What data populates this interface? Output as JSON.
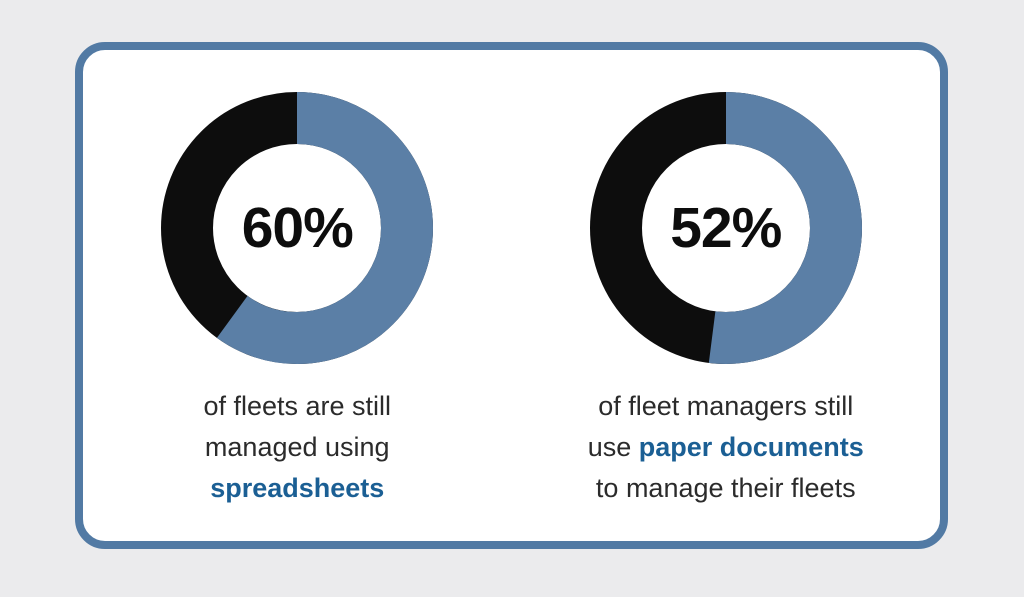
{
  "page": {
    "background_color": "#ebebed"
  },
  "card": {
    "background_color": "#ffffff",
    "border_color": "#527aa4"
  },
  "chart_data": [
    {
      "type": "donut",
      "title": "60% of fleets are still managed using spreadsheets",
      "value": 60,
      "remainder": 40,
      "center_label": "60%",
      "start_angle_deg": 0,
      "direction": "clockwise",
      "segments": [
        {
          "name": "fleets managed using spreadsheets",
          "value": 60,
          "color": "#5b7fa6"
        },
        {
          "name": "other",
          "value": 40,
          "color": "#0d0d0d"
        }
      ],
      "caption": [
        {
          "pre": "of fleets are still",
          "em": "",
          "post": ""
        },
        {
          "pre": "managed using",
          "em": "",
          "post": ""
        },
        {
          "pre": "",
          "em": "spreadsheets",
          "post": ""
        }
      ]
    },
    {
      "type": "donut",
      "title": "52% of fleet managers still use paper documents to manage their fleets",
      "value": 52,
      "remainder": 48,
      "center_label": "52%",
      "start_angle_deg": 0,
      "direction": "clockwise",
      "segments": [
        {
          "name": "fleet managers using paper documents",
          "value": 52,
          "color": "#5b7fa6"
        },
        {
          "name": "other",
          "value": 48,
          "color": "#0d0d0d"
        }
      ],
      "caption": [
        {
          "pre": "of fleet managers still",
          "em": "",
          "post": ""
        },
        {
          "pre": "use ",
          "em": "paper documents",
          "post": ""
        },
        {
          "pre": "to manage their fleets",
          "em": "",
          "post": ""
        }
      ]
    }
  ]
}
